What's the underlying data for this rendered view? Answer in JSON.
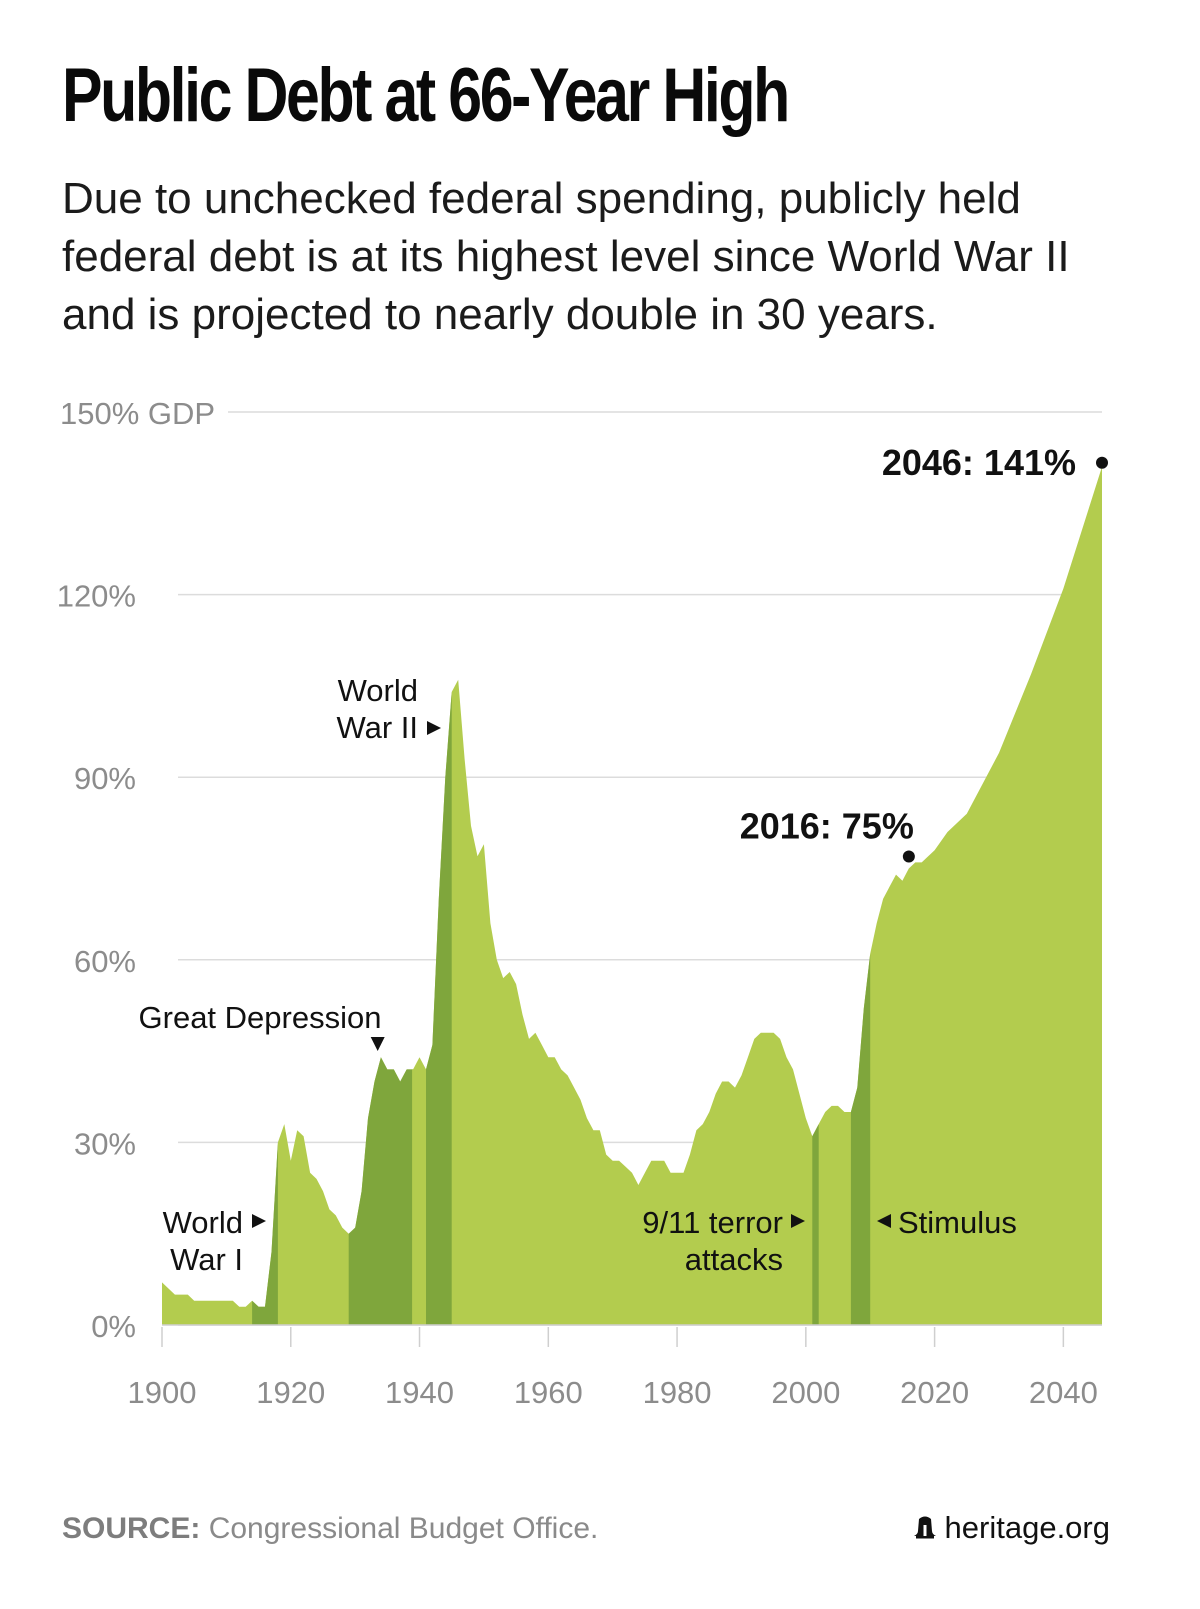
{
  "title": "Public Debt at 66-Year High",
  "subtitle": "Due to unchecked federal spending, publicly held federal debt is at its highest level since World War II and is projected to nearly double in 30 years.",
  "source_label": "SOURCE:",
  "source_text": "Congressional Budget Office.",
  "brand": "heritage.org",
  "brand_icon": "liberty-bell-icon",
  "colors": {
    "area": "#b3cc4e",
    "highlight": "#7fa63c",
    "grid": "#dcdcdc",
    "axis_text": "#8c8c8c",
    "annotation": "#111111"
  },
  "chart_data": {
    "type": "area",
    "title": "Public Debt at 66-Year High",
    "xlabel": "",
    "ylabel": "",
    "xlim": [
      1900,
      2046
    ],
    "ylim": [
      0,
      150
    ],
    "grid": true,
    "x_ticks": [
      "1900",
      "1920",
      "1940",
      "1960",
      "1980",
      "2000",
      "2020",
      "2040"
    ],
    "y_ticks": [
      {
        "value": 0,
        "label": "0%"
      },
      {
        "value": 30,
        "label": "30%"
      },
      {
        "value": 60,
        "label": "60%"
      },
      {
        "value": 90,
        "label": "90%"
      },
      {
        "value": 120,
        "label": "120%"
      },
      {
        "value": 150,
        "label": "150% GDP"
      }
    ],
    "series": [
      {
        "values": [
          [
            1900,
            7
          ],
          [
            1902,
            5
          ],
          [
            1904,
            5
          ],
          [
            1905,
            4
          ],
          [
            1907,
            4
          ],
          [
            1910,
            4
          ],
          [
            1911,
            4
          ],
          [
            1912,
            3
          ],
          [
            1913,
            3
          ],
          [
            1914,
            4
          ],
          [
            1915,
            3
          ],
          [
            1916,
            3
          ],
          [
            1917,
            12
          ],
          [
            1918,
            30
          ],
          [
            1919,
            33
          ],
          [
            1920,
            27
          ],
          [
            1921,
            32
          ],
          [
            1922,
            31
          ],
          [
            1923,
            25
          ],
          [
            1924,
            24
          ],
          [
            1925,
            22
          ],
          [
            1926,
            19
          ],
          [
            1927,
            18
          ],
          [
            1928,
            16
          ],
          [
            1929,
            15
          ],
          [
            1930,
            16
          ],
          [
            1931,
            22
          ],
          [
            1932,
            34
          ],
          [
            1933,
            40
          ],
          [
            1934,
            44
          ],
          [
            1935,
            42
          ],
          [
            1936,
            42
          ],
          [
            1937,
            40
          ],
          [
            1938,
            42
          ],
          [
            1939,
            42
          ],
          [
            1940,
            44
          ],
          [
            1941,
            42
          ],
          [
            1942,
            46
          ],
          [
            1943,
            70
          ],
          [
            1944,
            90
          ],
          [
            1945,
            104
          ],
          [
            1946,
            106
          ],
          [
            1947,
            93
          ],
          [
            1948,
            82
          ],
          [
            1949,
            77
          ],
          [
            1950,
            79
          ],
          [
            1951,
            66
          ],
          [
            1952,
            60
          ],
          [
            1953,
            57
          ],
          [
            1954,
            58
          ],
          [
            1955,
            56
          ],
          [
            1956,
            51
          ],
          [
            1957,
            47
          ],
          [
            1958,
            48
          ],
          [
            1959,
            46
          ],
          [
            1960,
            44
          ],
          [
            1961,
            44
          ],
          [
            1962,
            42
          ],
          [
            1963,
            41
          ],
          [
            1964,
            39
          ],
          [
            1965,
            37
          ],
          [
            1966,
            34
          ],
          [
            1967,
            32
          ],
          [
            1968,
            32
          ],
          [
            1969,
            28
          ],
          [
            1970,
            27
          ],
          [
            1971,
            27
          ],
          [
            1972,
            26
          ],
          [
            1973,
            25
          ],
          [
            1974,
            23
          ],
          [
            1975,
            25
          ],
          [
            1976,
            27
          ],
          [
            1977,
            27
          ],
          [
            1978,
            27
          ],
          [
            1979,
            25
          ],
          [
            1980,
            25
          ],
          [
            1981,
            25
          ],
          [
            1982,
            28
          ],
          [
            1983,
            32
          ],
          [
            1984,
            33
          ],
          [
            1985,
            35
          ],
          [
            1986,
            38
          ],
          [
            1987,
            40
          ],
          [
            1988,
            40
          ],
          [
            1989,
            39
          ],
          [
            1990,
            41
          ],
          [
            1991,
            44
          ],
          [
            1992,
            47
          ],
          [
            1993,
            48
          ],
          [
            1994,
            48
          ],
          [
            1995,
            48
          ],
          [
            1996,
            47
          ],
          [
            1997,
            44
          ],
          [
            1998,
            42
          ],
          [
            1999,
            38
          ],
          [
            2000,
            34
          ],
          [
            2001,
            31
          ],
          [
            2002,
            33
          ],
          [
            2003,
            35
          ],
          [
            2004,
            36
          ],
          [
            2005,
            36
          ],
          [
            2006,
            35
          ],
          [
            2007,
            35
          ],
          [
            2008,
            39
          ],
          [
            2009,
            52
          ],
          [
            2010,
            61
          ],
          [
            2011,
            66
          ],
          [
            2012,
            70
          ],
          [
            2013,
            72
          ],
          [
            2014,
            74
          ],
          [
            2015,
            73
          ],
          [
            2016,
            75
          ],
          [
            2017,
            76
          ],
          [
            2018,
            76
          ],
          [
            2019,
            77
          ],
          [
            2020,
            78
          ],
          [
            2022,
            81
          ],
          [
            2025,
            84
          ],
          [
            2030,
            94
          ],
          [
            2035,
            107
          ],
          [
            2040,
            121
          ],
          [
            2046,
            141
          ]
        ]
      }
    ],
    "highlight_bands": [
      {
        "start": 1914,
        "end": 1918
      },
      {
        "start": 1929,
        "end": 1939
      },
      {
        "start": 1941,
        "end": 1945
      },
      {
        "start": 2001,
        "end": 2002
      },
      {
        "start": 2007,
        "end": 2010
      }
    ],
    "annotations": {
      "wwi": {
        "line1": "World",
        "line2": "War I",
        "x": 1917
      },
      "depression": {
        "text": "Great Depression",
        "x": 1933.5
      },
      "wwii": {
        "line1": "World",
        "line2": "War II",
        "x": 1944
      },
      "terror": {
        "line1": "9/11 terror",
        "line2": "attacks",
        "x": 2001
      },
      "stimulus": {
        "text": "Stimulus",
        "x": 2008
      },
      "point_2016": {
        "label": "2016: 75%",
        "x": 2016,
        "y": 75
      },
      "point_2046": {
        "label": "2046: 141%",
        "x": 2046,
        "y": 141
      }
    }
  }
}
